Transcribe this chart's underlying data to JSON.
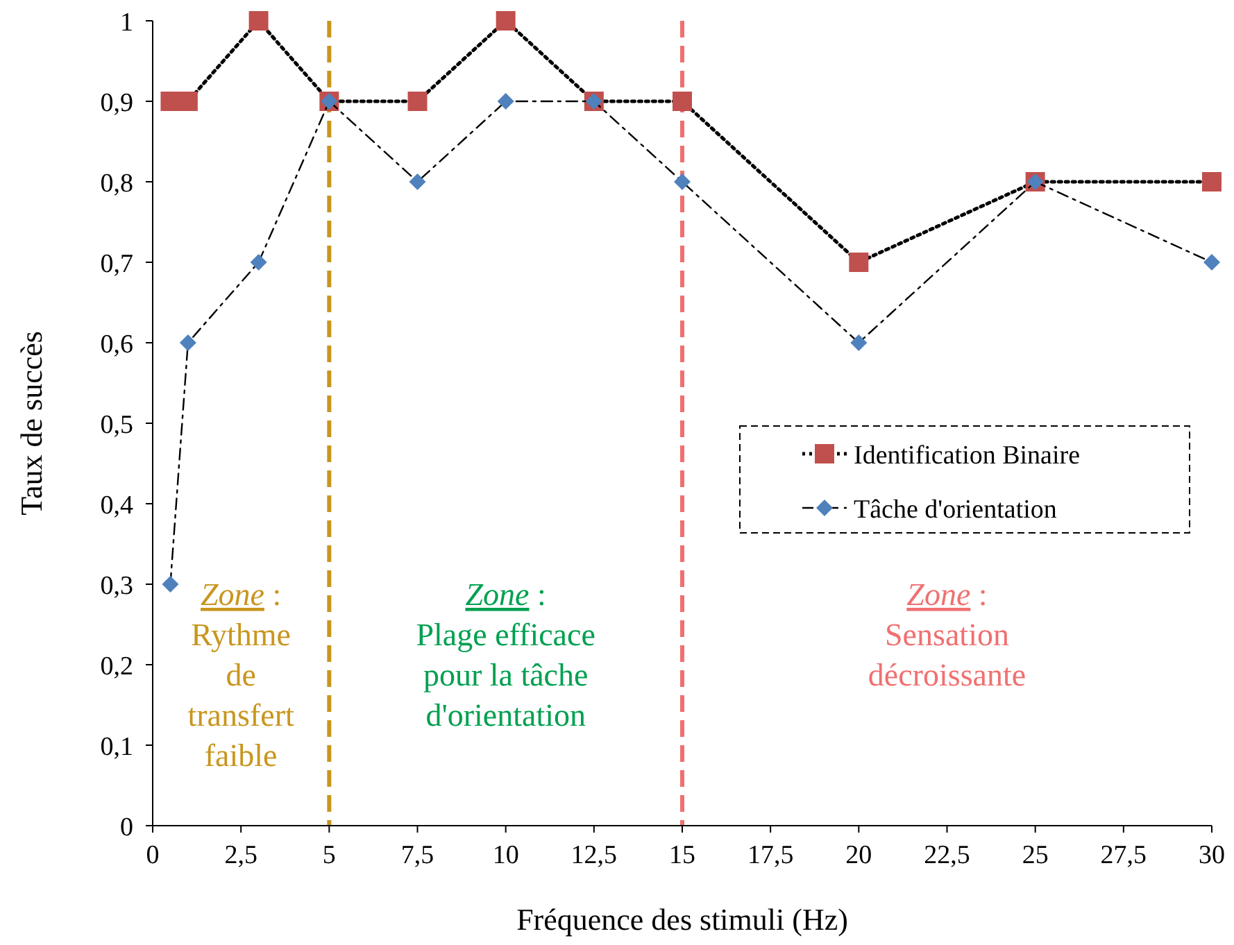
{
  "chart_data": {
    "type": "line",
    "xlabel": "Fréquence des stimuli (Hz)",
    "ylabel": "Taux de succès",
    "x": [
      0.5,
      1,
      3,
      5,
      7.5,
      10,
      12.5,
      15,
      20,
      25,
      30
    ],
    "series": [
      {
        "name": "Identification Binaire",
        "color": "#c0504d",
        "marker": "square",
        "line_style": "dotted",
        "values": [
          0.9,
          0.9,
          1,
          0.9,
          0.9,
          1,
          0.9,
          0.9,
          0.7,
          0.8,
          0.8
        ]
      },
      {
        "name": "Tâche d'orientation",
        "color": "#4f81bd",
        "marker": "diamond",
        "line_style": "dashed",
        "values": [
          0.3,
          0.6,
          0.7,
          0.9,
          0.8,
          0.9,
          0.9,
          0.8,
          0.6,
          0.8,
          0.7
        ]
      }
    ],
    "xlim": [
      0,
      30
    ],
    "xticks": [
      0,
      {
        "value": 2.5,
        "label": "2,5"
      },
      5,
      {
        "value": 7.5,
        "label": "7,5"
      },
      10,
      {
        "value": 12.5,
        "label": "12,5"
      },
      15,
      {
        "value": 17.5,
        "label": "17,5"
      },
      20,
      {
        "value": 22.5,
        "label": "22,5"
      },
      25,
      {
        "value": 27.5,
        "label": "27,5"
      },
      30
    ],
    "ylim": [
      0,
      1
    ],
    "yticks": [
      0,
      {
        "value": 0.1,
        "label": "0,1"
      },
      {
        "value": 0.2,
        "label": "0,2"
      },
      {
        "value": 0.3,
        "label": "0,3"
      },
      {
        "value": 0.4,
        "label": "0,4"
      },
      {
        "value": 0.5,
        "label": "0,5"
      },
      {
        "value": 0.6,
        "label": "0,6"
      },
      {
        "value": 0.7,
        "label": "0,7"
      },
      {
        "value": 0.8,
        "label": "0,8"
      },
      {
        "value": 0.9,
        "label": "0,9"
      },
      1
    ],
    "ref_lines": [
      {
        "axis": "x",
        "value": 5,
        "color": "#c8961e",
        "line_style": "dashed"
      },
      {
        "axis": "x",
        "value": 15,
        "color": "#f07070",
        "line_style": "dashed"
      }
    ],
    "annotations": [
      "Zone :\nRythme\nde\ntransfert\nfaible",
      "Zone :\nPlage efficace\npour la tâche\nd'orientation",
      "Zone :\nSensation\ndécroissante"
    ],
    "grid": false,
    "legend": "right"
  }
}
